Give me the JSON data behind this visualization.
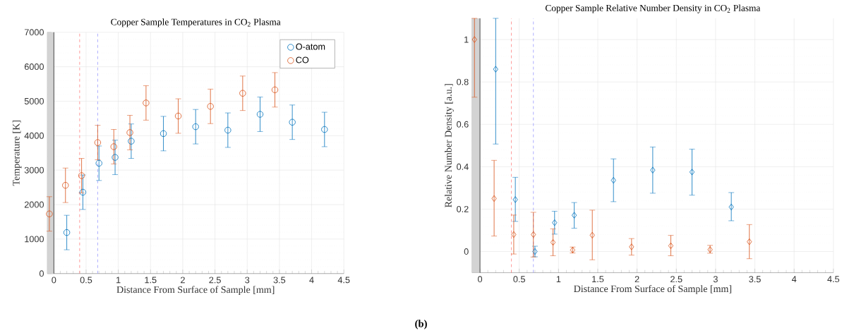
{
  "chart_data": [
    {
      "type": "scatter",
      "title": "Copper Sample Temperatures in CO$_{2}$ Plasma",
      "xlabel": "Distance From Surface of Sample [mm]",
      "ylabel": "Temperature [K]",
      "xlim": [
        -0.1,
        4.5
      ],
      "ylim": [
        0,
        7000
      ],
      "xticks": [
        0,
        0.5,
        1,
        1.5,
        2,
        2.5,
        3,
        3.5,
        4,
        4.5
      ],
      "yticks": [
        0,
        1000,
        2000,
        3000,
        4000,
        5000,
        6000,
        7000
      ],
      "grid": true,
      "legend": "top right",
      "marker": "circle",
      "series": [
        {
          "name": "O-atom",
          "color": "#0072bd",
          "x": [
            0.2,
            0.45,
            0.7,
            0.95,
            1.2,
            1.7,
            2.2,
            2.7,
            3.2,
            3.7,
            4.2
          ],
          "values": [
            1190,
            2360,
            3200,
            3370,
            3840,
            4060,
            4260,
            4160,
            4620,
            4390,
            4180
          ],
          "errors": [
            500,
            500,
            500,
            500,
            500,
            500,
            500,
            500,
            500,
            500,
            500
          ]
        },
        {
          "name": "CO",
          "color": "#d95319",
          "x": [
            -0.07,
            0.18,
            0.43,
            0.68,
            0.93,
            1.18,
            1.43,
            1.93,
            2.43,
            2.93,
            3.43
          ],
          "values": [
            1730,
            2560,
            2840,
            3800,
            3680,
            4090,
            4950,
            4570,
            4850,
            5230,
            5330
          ],
          "errors": [
            500,
            500,
            500,
            500,
            500,
            500,
            500,
            500,
            500,
            500,
            500
          ]
        }
      ],
      "bands": [
        {
          "axis": "x",
          "from": -0.1,
          "to": 0,
          "color": "#d3d3d3"
        }
      ],
      "ref_lines": [
        {
          "axis": "x",
          "value": 0,
          "color": "#262626",
          "line_style": "solid"
        },
        {
          "axis": "x",
          "value": 0.4,
          "color": "#ff8080",
          "line_style": "dashed"
        },
        {
          "axis": "x",
          "value": 0.68,
          "color": "#9999ff",
          "line_style": "dashed"
        }
      ],
      "annotations": [
        "(b)"
      ]
    },
    {
      "type": "scatter",
      "title": "Copper Sample Relative Number Density in CO$_{2}$ Plasma",
      "xlabel": "Distance From Surface of Sample [mm]",
      "ylabel": "Relative Number Density [a.u.]",
      "xlim": [
        -0.1,
        4.5
      ],
      "ylim": [
        -0.1,
        1.1
      ],
      "xticks": [
        0,
        0.5,
        1,
        1.5,
        2,
        2.5,
        3,
        3.5,
        4,
        4.5
      ],
      "yticks": [
        0,
        0.2,
        0.4,
        0.6,
        0.8,
        1
      ],
      "grid": true,
      "marker": "diamond",
      "series": [
        {
          "color": "#0072bd",
          "x": [
            0.2,
            0.45,
            0.7,
            0.95,
            1.2,
            1.7,
            2.2,
            2.7,
            3.2
          ],
          "values": [
            0.86,
            0.245,
            0.0,
            0.136,
            0.171,
            0.336,
            0.384,
            0.375,
            0.21
          ],
          "errors": [
            [
              0.507,
              1.1
            ],
            [
              0.142,
              0.35
            ],
            [
              -0.025,
              0.025
            ],
            [
              0.082,
              0.19
            ],
            [
              0.11,
              0.231
            ],
            [
              0.235,
              0.437
            ],
            [
              0.275,
              0.493
            ],
            [
              0.266,
              0.483
            ],
            [
              0.145,
              0.278
            ]
          ]
        },
        {
          "color": "#d95319",
          "x": [
            -0.07,
            0.18,
            0.43,
            0.68,
            0.93,
            1.18,
            1.43,
            1.93,
            2.43,
            2.93,
            3.43
          ],
          "values": [
            1.0,
            0.25,
            0.08,
            0.08,
            0.043,
            0.007,
            0.077,
            0.022,
            0.027,
            0.009,
            0.046
          ],
          "errors": [
            [
              0.728,
              1.1
            ],
            [
              0.073,
              0.43
            ],
            [
              -0.012,
              0.172
            ],
            [
              -0.026,
              0.185
            ],
            [
              -0.02,
              0.107
            ],
            [
              -0.007,
              0.021
            ],
            [
              -0.039,
              0.195
            ],
            [
              -0.017,
              0.061
            ],
            [
              -0.02,
              0.076
            ],
            [
              -0.008,
              0.029
            ],
            [
              -0.034,
              0.127
            ]
          ]
        }
      ],
      "bands": [
        {
          "axis": "x",
          "from": -0.1,
          "to": 0,
          "color": "#d3d3d3"
        }
      ],
      "ref_lines": [
        {
          "axis": "x",
          "value": 0,
          "color": "#262626",
          "line_style": "solid"
        },
        {
          "axis": "x",
          "value": 0.4,
          "color": "#ff8080",
          "line_style": "dashed"
        },
        {
          "axis": "x",
          "value": 0.68,
          "color": "#9999ff",
          "line_style": "dashed"
        }
      ]
    }
  ]
}
